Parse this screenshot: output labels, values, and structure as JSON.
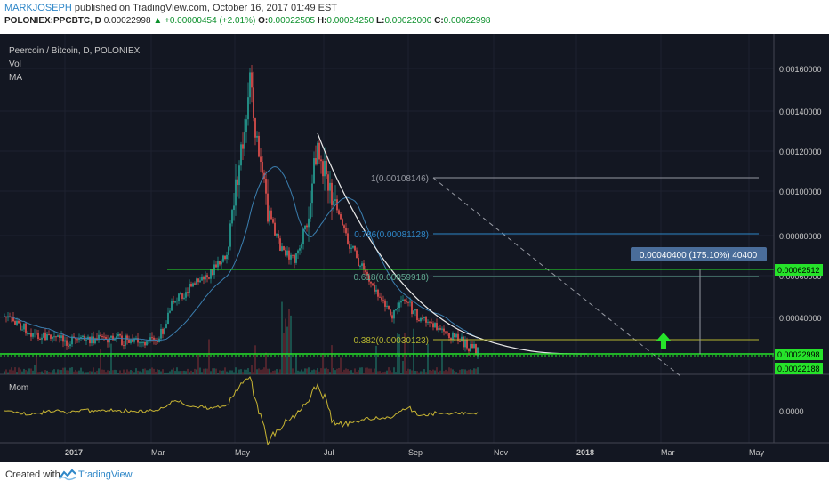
{
  "header": {
    "author": "MARKJOSEPH",
    "published_text": "published on TradingView.com, October 16, 2017 01:49 EST",
    "symbol": "POLONIEX:PPCBTC, D",
    "last": "0.00022998",
    "change": "+0.00000454 (+2.01%)",
    "o_label": "O:",
    "o": "0.00022505",
    "h_label": "H:",
    "h": "0.00024250",
    "l_label": "L:",
    "l": "0.00022000",
    "c_label": "C:",
    "c": "0.00022998"
  },
  "pane": {
    "title": "Peercoin / Bitcoin, D, POLONIEX",
    "vol_label": "Vol",
    "ma_label": "MA",
    "mom_label": "Mom"
  },
  "price_axis": [
    "0.00160000",
    "0.00140000",
    "0.00120000",
    "0.00100000",
    "0.00080000",
    "0.00060000",
    "0.00040000"
  ],
  "price_tags": {
    "level": "0.00062512",
    "current": "0.00022998",
    "low": "0.00022188"
  },
  "mom_axis": "0.0000",
  "time_axis": [
    "2017",
    "Mar",
    "May",
    "Jul",
    "Sep",
    "Nov",
    "2018",
    "Mar",
    "May"
  ],
  "fib_levels": [
    {
      "label": "1(0.00108146)",
      "color": "#9598a1"
    },
    {
      "label": "0.786(0.00081128)",
      "color": "#2e87c8"
    },
    {
      "label": "0.618(0.00059918)",
      "color": "#5fa88f"
    },
    {
      "label": "0.382(0.00030123)",
      "color": "#b5b530"
    }
  ],
  "measure_label": "0.00040400 (175.10%) 40400",
  "colors": {
    "bg": "#131722",
    "grid": "#1e2230",
    "up": "#26a69a",
    "down": "#ef5350",
    "green_line": "#26e32a",
    "ma": "#3b7fb0",
    "mom": "#c8b533"
  },
  "footer": {
    "created": "Created with",
    "brand": "TradingView"
  }
}
